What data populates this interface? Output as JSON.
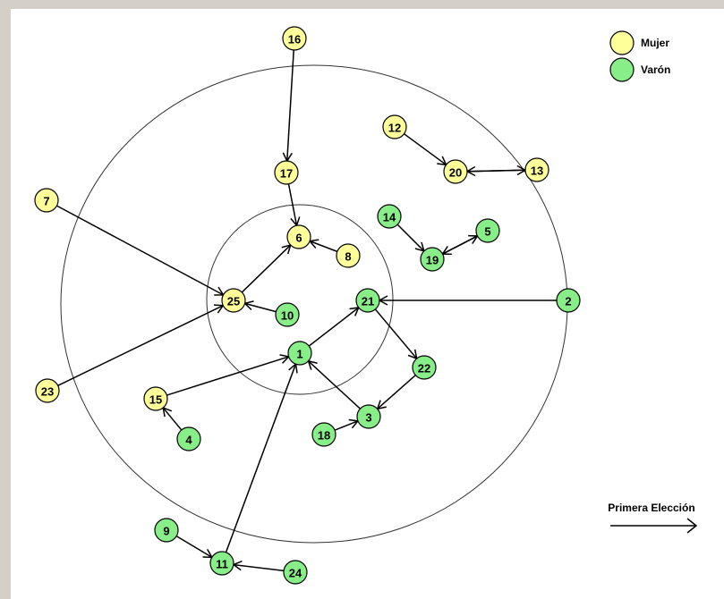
{
  "colors": {
    "mujer": "#ffff99",
    "varon": "#88ee88",
    "stroke": "#000000",
    "ring": "#333333"
  },
  "legend": {
    "mujer": "Mujer",
    "varon": "Varón"
  },
  "annotation": {
    "label": "Primera Elección"
  },
  "rings": [
    "center",
    "middle",
    "outer"
  ],
  "nodes": [
    {
      "id": "1",
      "gender": "varon"
    },
    {
      "id": "2",
      "gender": "varon"
    },
    {
      "id": "3",
      "gender": "varon"
    },
    {
      "id": "4",
      "gender": "varon"
    },
    {
      "id": "5",
      "gender": "varon"
    },
    {
      "id": "6",
      "gender": "mujer"
    },
    {
      "id": "7",
      "gender": "mujer"
    },
    {
      "id": "8",
      "gender": "mujer"
    },
    {
      "id": "9",
      "gender": "varon"
    },
    {
      "id": "10",
      "gender": "varon"
    },
    {
      "id": "11",
      "gender": "varon"
    },
    {
      "id": "12",
      "gender": "mujer"
    },
    {
      "id": "13",
      "gender": "mujer"
    },
    {
      "id": "14",
      "gender": "varon"
    },
    {
      "id": "15",
      "gender": "mujer"
    },
    {
      "id": "16",
      "gender": "mujer"
    },
    {
      "id": "17",
      "gender": "mujer"
    },
    {
      "id": "18",
      "gender": "varon"
    },
    {
      "id": "19",
      "gender": "varon"
    },
    {
      "id": "20",
      "gender": "mujer"
    },
    {
      "id": "21",
      "gender": "varon"
    },
    {
      "id": "22",
      "gender": "varon"
    },
    {
      "id": "23",
      "gender": "mujer"
    },
    {
      "id": "24",
      "gender": "varon"
    },
    {
      "id": "25",
      "gender": "mujer"
    }
  ],
  "edges": [
    {
      "from": "16",
      "to": "17"
    },
    {
      "from": "17",
      "to": "6"
    },
    {
      "from": "8",
      "to": "6"
    },
    {
      "from": "25",
      "to": "6"
    },
    {
      "from": "7",
      "to": "25"
    },
    {
      "from": "23",
      "to": "25"
    },
    {
      "from": "10",
      "to": "25"
    },
    {
      "from": "12",
      "to": "20"
    },
    {
      "from": "13",
      "to": "20"
    },
    {
      "from": "20",
      "to": "13"
    },
    {
      "from": "14",
      "to": "19"
    },
    {
      "from": "19",
      "to": "5"
    },
    {
      "from": "5",
      "to": "19"
    },
    {
      "from": "2",
      "to": "21"
    },
    {
      "from": "1",
      "to": "21"
    },
    {
      "from": "21",
      "to": "22"
    },
    {
      "from": "22",
      "to": "3"
    },
    {
      "from": "3",
      "to": "1"
    },
    {
      "from": "18",
      "to": "3"
    },
    {
      "from": "15",
      "to": "1"
    },
    {
      "from": "4",
      "to": "15"
    },
    {
      "from": "11",
      "to": "1"
    },
    {
      "from": "9",
      "to": "11"
    },
    {
      "from": "24",
      "to": "11"
    }
  ]
}
